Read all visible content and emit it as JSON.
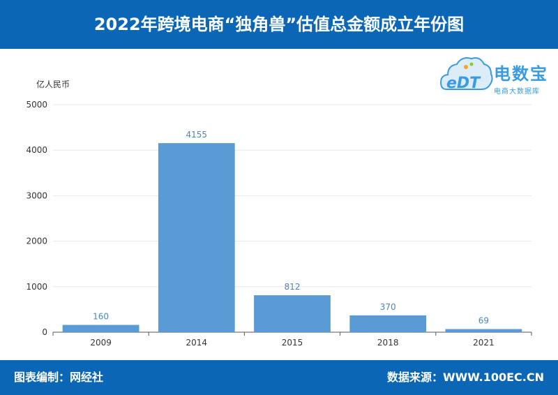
{
  "header": {
    "title": "2022年跨境电商“独角兽”估值总金额成立年份图"
  },
  "logo": {
    "brand": "电数宝",
    "subtitle": "电商大数据库",
    "mark": "eDT"
  },
  "footer": {
    "left": "图表编制：网经社",
    "right": "数据来源：WWW.100EC.CN"
  },
  "colors": {
    "header": "#0b67b6",
    "bar": "#5b9bd5",
    "label": "#4a86b8"
  },
  "chart_data": {
    "type": "bar",
    "categories": [
      "2009",
      "2014",
      "2015",
      "2018",
      "2021"
    ],
    "values": [
      160,
      4155,
      812,
      370,
      69
    ],
    "ylabel": "亿人民币",
    "ylim": [
      0,
      5000
    ],
    "yticks": [
      0,
      1000,
      2000,
      3000,
      4000,
      5000
    ],
    "grid": true
  }
}
